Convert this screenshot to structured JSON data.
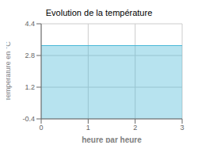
{
  "chart_data": {
    "type": "area",
    "title": "Evolution de la température",
    "xlabel": "heure par heure",
    "ylabel": "Température en °C",
    "x": [
      0,
      3
    ],
    "values": [
      3.3,
      3.3
    ],
    "color": "#4ab8d8",
    "xlim": [
      0,
      3
    ],
    "ylim": [
      -0.4,
      4.4
    ],
    "xticks": [
      0,
      1,
      2,
      3
    ],
    "yticks": [
      -0.4,
      1.2,
      2.8,
      4.4
    ],
    "grid": true
  }
}
